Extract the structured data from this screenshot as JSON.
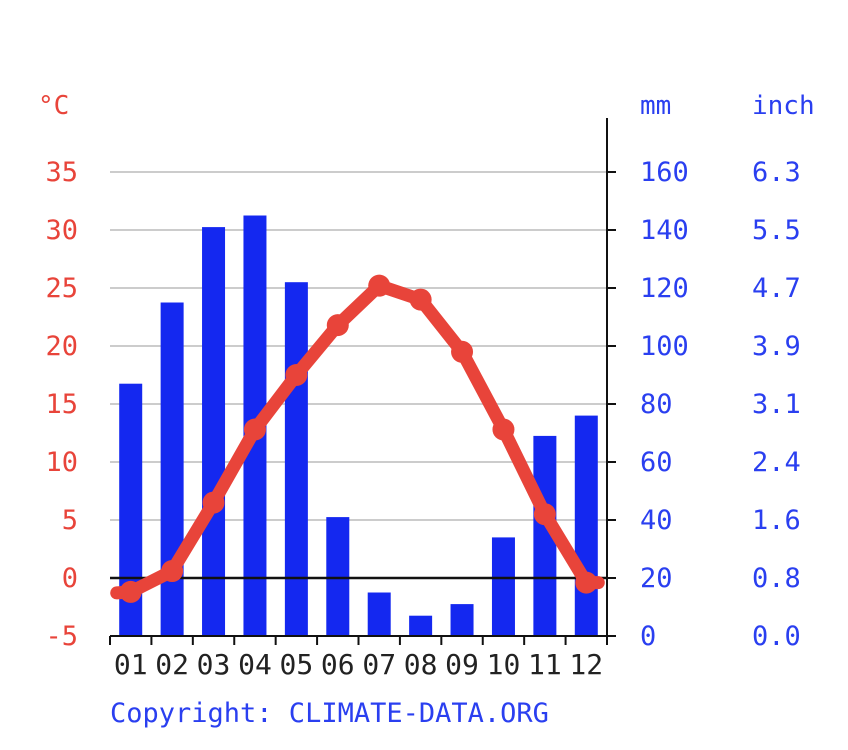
{
  "colors": {
    "temperature": "#e8443a",
    "precipitation": "#1428f0",
    "axis": "#111111",
    "grid": "#cccccc"
  },
  "copyright": "Copyright: CLIMATE-DATA.ORG",
  "chart_data": {
    "type": "bar",
    "categories": [
      "01",
      "02",
      "03",
      "04",
      "05",
      "06",
      "07",
      "08",
      "09",
      "10",
      "11",
      "12"
    ],
    "units": {
      "temperature": "°C",
      "precipitation_mm": "mm",
      "precipitation_inch": "inch"
    },
    "series": [
      {
        "type": "bar",
        "axis": "right",
        "values": [
          87,
          115,
          141,
          145,
          122,
          41,
          15,
          7,
          11,
          34,
          69,
          76
        ]
      },
      {
        "type": "line",
        "axis": "left",
        "values": [
          -1.2,
          0.6,
          6.5,
          12.8,
          17.5,
          21.8,
          25.2,
          24.0,
          19.5,
          12.8,
          5.5,
          -0.4
        ]
      }
    ],
    "y_left": {
      "ylim": [
        -5,
        40
      ],
      "ticks": [
        "-5",
        "0",
        "5",
        "10",
        "15",
        "20",
        "25",
        "30",
        "35"
      ]
    },
    "y_right_mm": {
      "ylim": [
        0,
        180
      ],
      "ticks": [
        "0",
        "20",
        "40",
        "60",
        "80",
        "100",
        "120",
        "140",
        "160"
      ]
    },
    "y_right_inch": {
      "ticks": [
        "0.0",
        "0.8",
        "1.6",
        "2.4",
        "3.1",
        "3.9",
        "4.7",
        "5.5",
        "6.3"
      ]
    },
    "grid": true,
    "zero_line": true
  }
}
